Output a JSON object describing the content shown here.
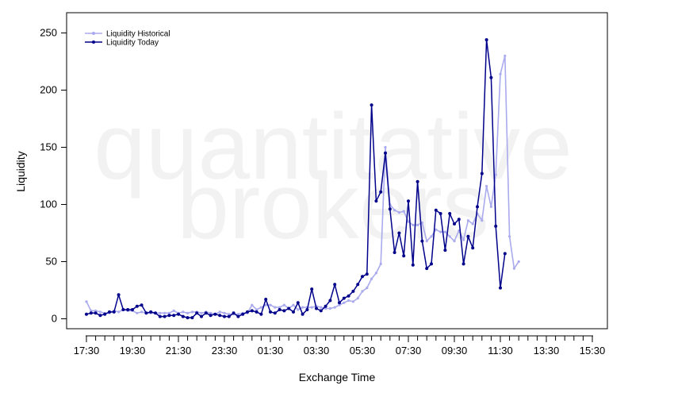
{
  "chart_data": {
    "type": "line",
    "xlabel": "Exchange Time",
    "ylabel": "Liquidity",
    "ylim": [
      -9,
      269
    ],
    "yticks": [
      0,
      50,
      100,
      150,
      200,
      250
    ],
    "grid": false,
    "legend_position": "top-left",
    "watermark": [
      "quantitative",
      "brokers"
    ],
    "x_tick_labels": [
      "17:30",
      "19:30",
      "21:30",
      "23:30",
      "01:30",
      "03:30",
      "05:30",
      "07:30",
      "09:30",
      "11:30",
      "13:30",
      "15:30"
    ],
    "series": [
      {
        "name": "Liquidity Historical",
        "color": "#aaaaee",
        "values": [
          15,
          7,
          7,
          6,
          5,
          5,
          7,
          6,
          8,
          7,
          7,
          5,
          6,
          5,
          5,
          5,
          5,
          5,
          5,
          7,
          5,
          6,
          5,
          6,
          6,
          5,
          6,
          5,
          4,
          6,
          5,
          4,
          4,
          4,
          5,
          5,
          12,
          8,
          10,
          12,
          12,
          10,
          10,
          12,
          9,
          12,
          8,
          10,
          10,
          10,
          11,
          10,
          9,
          9,
          10,
          12,
          14,
          16,
          15,
          18,
          24,
          27,
          35,
          40,
          48,
          150,
          100,
          95,
          93,
          94,
          85,
          82,
          82,
          84,
          68,
          72,
          78,
          76,
          76,
          72,
          68,
          77,
          69,
          86,
          83,
          92,
          86,
          116,
          98,
          126,
          214,
          230,
          72,
          44,
          50
        ]
      },
      {
        "name": "Liquidity Today",
        "color": "#00008b",
        "values": [
          4,
          5,
          5,
          3,
          4,
          6,
          6,
          21,
          8,
          8,
          8,
          11,
          12,
          5,
          6,
          5,
          2,
          2,
          3,
          3,
          4,
          2,
          1,
          1,
          5,
          2,
          5,
          3,
          4,
          3,
          2,
          2,
          5,
          2,
          4,
          6,
          7,
          6,
          4,
          17,
          6,
          5,
          8,
          7,
          9,
          6,
          14,
          4,
          8,
          26,
          9,
          7,
          11,
          16,
          30,
          14,
          18,
          20,
          24,
          30,
          37,
          39,
          187,
          103,
          111,
          145,
          96,
          58,
          75,
          55,
          103,
          47,
          120,
          68,
          44,
          48,
          95,
          92,
          60,
          92,
          83,
          87,
          48,
          72,
          62,
          98,
          127,
          244,
          211,
          81,
          27,
          57
        ]
      }
    ]
  }
}
